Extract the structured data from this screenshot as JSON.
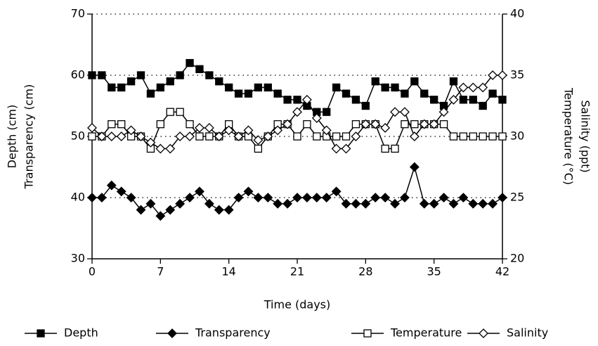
{
  "chart_data": {
    "type": "line",
    "xlabel": "Time (days)",
    "ylabel": [
      "Depth (cm)",
      "Transparency (cm)"
    ],
    "y2label": [
      "Temperature (°C)",
      "Salinity (ppt)"
    ],
    "x": [
      0,
      1,
      2,
      3,
      4,
      5,
      6,
      7,
      8,
      9,
      10,
      11,
      12,
      13,
      14,
      15,
      16,
      17,
      18,
      19,
      20,
      21,
      22,
      23,
      24,
      25,
      26,
      27,
      28,
      29,
      30,
      31,
      32,
      33,
      34,
      35,
      36,
      37,
      38,
      39,
      40,
      41,
      42
    ],
    "xlim": [
      0,
      42
    ],
    "xticks": [
      0,
      7,
      14,
      21,
      28,
      35,
      42
    ],
    "ylim": [
      30,
      70
    ],
    "yticks": [
      30,
      40,
      50,
      60,
      70
    ],
    "y2lim": [
      20,
      40
    ],
    "y2ticks": [
      20,
      25,
      30,
      35,
      40
    ],
    "grid": true,
    "series": [
      {
        "name": "Depth",
        "color": "#000000",
        "marker": "square",
        "filled": true,
        "axis": "y",
        "values": [
          60,
          60,
          58,
          58,
          59,
          60,
          57,
          58,
          59,
          60,
          62,
          61,
          60,
          59,
          58,
          57,
          57,
          58,
          58,
          57,
          56,
          56,
          55,
          54,
          54,
          58,
          57,
          56,
          55,
          59,
          58,
          58,
          57,
          59,
          57,
          56,
          55,
          59,
          56,
          56,
          55,
          57,
          56
        ]
      },
      {
        "name": "Transparency",
        "color": "#000000",
        "marker": "diamond",
        "filled": true,
        "axis": "y",
        "values": [
          40,
          40,
          42,
          41,
          40,
          38,
          39,
          37,
          38,
          39,
          40,
          41,
          39,
          38,
          38,
          40,
          41,
          40,
          40,
          39,
          39,
          40,
          40,
          40,
          40,
          41,
          39,
          39,
          39,
          40,
          40,
          39,
          40,
          45,
          39,
          39,
          40,
          39,
          40,
          39,
          39,
          39,
          40
        ]
      },
      {
        "name": "Temperature",
        "color": "#000000",
        "marker": "square",
        "filled": false,
        "axis": "y2",
        "values": [
          30,
          30,
          31,
          31,
          30,
          30,
          29,
          31,
          32,
          32,
          31,
          30,
          30,
          30,
          31,
          30,
          30,
          29,
          30,
          31,
          31,
          30,
          31,
          30,
          30,
          30,
          30,
          31,
          31,
          31,
          29,
          29,
          31,
          31,
          31,
          31,
          31,
          30,
          30,
          30,
          30,
          30,
          30
        ]
      },
      {
        "name": "Salinity",
        "color": "#000000",
        "marker": "diamond",
        "filled": false,
        "axis": "y2",
        "values": [
          30.7,
          30,
          30,
          30,
          30.5,
          30,
          29.5,
          29,
          29,
          30,
          30,
          30.7,
          30.7,
          30,
          30.5,
          30,
          30.5,
          29.7,
          30,
          30.5,
          31,
          32,
          33,
          31.5,
          30.5,
          29,
          29,
          30,
          31,
          31,
          30.7,
          32,
          32,
          30,
          31,
          31,
          32,
          33,
          34,
          34,
          34,
          35,
          35
        ]
      }
    ]
  }
}
